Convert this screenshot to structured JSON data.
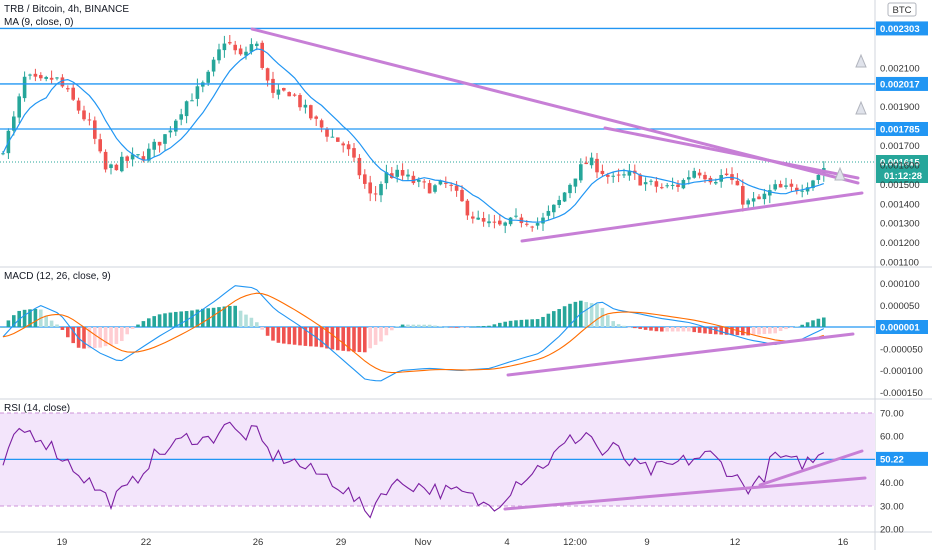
{
  "header": {
    "title": "TRB / Bitcoin, 4h, BINANCE",
    "indicator": "MA (9, close, 0)",
    "currency": "BTC"
  },
  "colors": {
    "up": "#26a69a",
    "down": "#ef5350",
    "ma": "#2196f3",
    "signal": "#ff6d00",
    "trend": "#c77fd6",
    "level": "#2196f3",
    "rsi_band": "#f3e5fb"
  },
  "chart_data": [
    {
      "type": "candlestick",
      "title": "TRB / Bitcoin, 4h, BINANCE",
      "ylim": [
        0.0011,
        0.00235
      ],
      "y_ticks": [
        "0.001100",
        "0.001200",
        "0.001300",
        "0.001400",
        "0.001500",
        "0.001600",
        "0.001700",
        "0.001900",
        "0.002100"
      ],
      "x_ticks": [
        "19",
        "22",
        "26",
        "29",
        "Nov",
        "4",
        "12:00",
        "9",
        "12",
        "16"
      ],
      "resistance_levels": [
        {
          "label": "0.002303",
          "value": 0.002303
        },
        {
          "label": "0.002017",
          "value": 0.002017
        },
        {
          "label": "0.001785",
          "value": 0.001785
        }
      ],
      "last_price": {
        "label": "0.001615",
        "value": 0.001615,
        "countdown": "01:12:28"
      }
    },
    {
      "type": "line",
      "title": "MACD (12, 26, close, 9)",
      "ylim": [
        -0.00015,
        0.00011
      ],
      "y_ticks": [
        "0.000100",
        "0.000050",
        "-0.000050",
        "-0.000100",
        "-0.000150"
      ],
      "last_value": {
        "label": "0.000001",
        "value": 1e-06
      },
      "series": [
        {
          "name": "MACD",
          "color": "#2196f3"
        },
        {
          "name": "Signal",
          "color": "#ff6d00"
        }
      ]
    },
    {
      "type": "line",
      "title": "RSI (14, close)",
      "ylim": [
        18,
        74
      ],
      "y_ticks": [
        "70.00",
        "60.00",
        "40.00",
        "30.00",
        "20.00"
      ],
      "bands": [
        30,
        70
      ],
      "last_value": {
        "label": "50.22",
        "value": 50.22
      }
    }
  ]
}
